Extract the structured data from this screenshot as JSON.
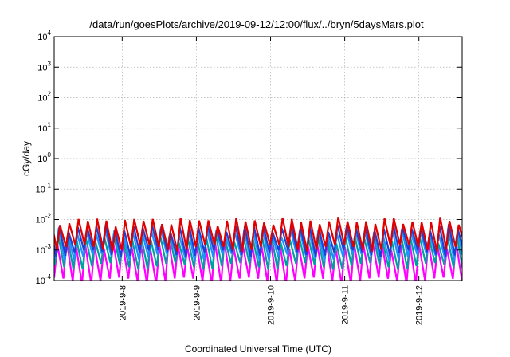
{
  "chart_data": {
    "type": "line",
    "title": "/data/run/goesPlots/archive/2019-09-12/12:00/flux/../bryn/5daysMars.plot",
    "xlabel": "Coordinated Universal Time (UTC)",
    "ylabel": "cGy/day",
    "yscale": "log",
    "ylim": [
      0.0001,
      10000
    ],
    "xlim": [
      "2019-09-07 02:00",
      "2019-09-12 14:00"
    ],
    "grid": true,
    "legend": "none",
    "x_tick_labels": [
      "2019-9-8",
      "2019-9-9",
      "2019-9-10",
      "2019-9-11",
      "2019-9-12"
    ],
    "y_tick_labels": [
      {
        "base": "10",
        "exp": "-4"
      },
      {
        "base": "10",
        "exp": "-3"
      },
      {
        "base": "10",
        "exp": "-2"
      },
      {
        "base": "10",
        "exp": "-1"
      },
      {
        "base": "10",
        "exp": "0"
      },
      {
        "base": "10",
        "exp": "1"
      },
      {
        "base": "10",
        "exp": "2"
      },
      {
        "base": "10",
        "exp": "3"
      },
      {
        "base": "10",
        "exp": "4"
      }
    ],
    "sawtooth_period_hours": 3,
    "series": [
      {
        "color": "#ff00ff",
        "low": 0.0001,
        "high": 0.0015
      },
      {
        "color": "#00a0a0",
        "low": 0.0003,
        "high": 0.0025
      },
      {
        "color": "#1e90ff",
        "low": 0.0006,
        "high": 0.004
      },
      {
        "color": "#2040d0",
        "low": 0.0008,
        "high": 0.0055
      },
      {
        "color": "#e00000",
        "low": 0.0012,
        "high": 0.009
      }
    ]
  }
}
